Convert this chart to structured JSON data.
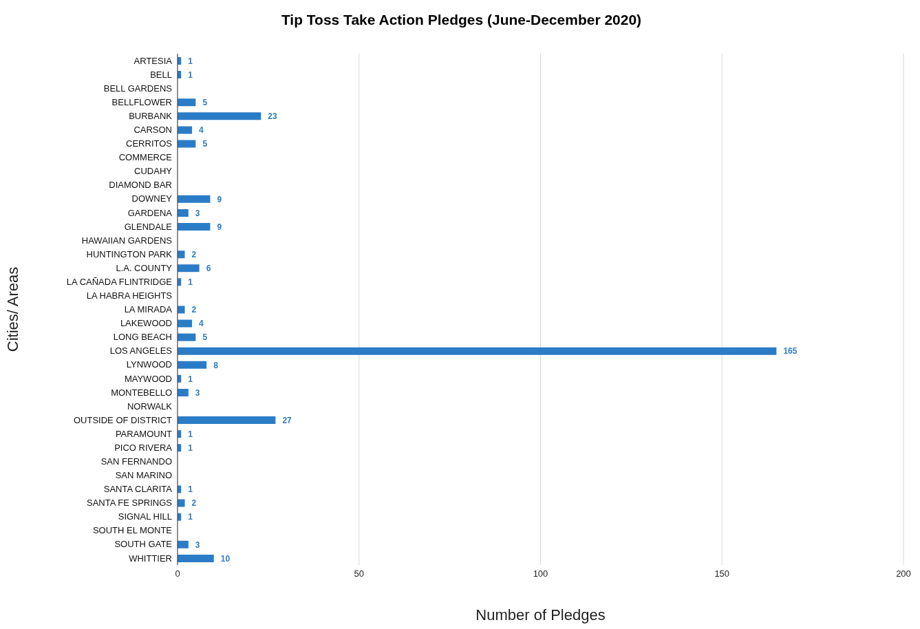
{
  "chart_data": {
    "type": "bar",
    "orientation": "horizontal",
    "title": "Tip Toss Take Action Pledges (June-December 2020)",
    "xlabel": "Number of Pledges",
    "ylabel": "Cities/ Areas",
    "categories": [
      "ARTESIA",
      "BELL",
      "BELL GARDENS",
      "BELLFLOWER",
      "BURBANK",
      "CARSON",
      "CERRITOS",
      "COMMERCE",
      "CUDAHY",
      "DIAMOND BAR",
      "DOWNEY",
      "GARDENA",
      "GLENDALE",
      "HAWAIIAN GARDENS",
      "HUNTINGTON PARK",
      "L.A. COUNTY",
      "LA CAÑADA FLINTRIDGE",
      "LA HABRA HEIGHTS",
      "LA MIRADA",
      "LAKEWOOD",
      "LONG BEACH",
      "LOS ANGELES",
      "LYNWOOD",
      "MAYWOOD",
      "MONTEBELLO",
      "NORWALK",
      "OUTSIDE OF DISTRICT",
      "PARAMOUNT",
      "PICO RIVERA",
      "SAN FERNANDO",
      "SAN MARINO",
      "SANTA CLARITA",
      "SANTA FE SPRINGS",
      "SIGNAL HILL",
      "SOUTH EL MONTE",
      "SOUTH GATE",
      "WHITTIER"
    ],
    "values": [
      1,
      1,
      null,
      5,
      23,
      4,
      5,
      null,
      null,
      null,
      9,
      3,
      9,
      null,
      2,
      6,
      1,
      null,
      2,
      4,
      5,
      165,
      8,
      1,
      3,
      null,
      27,
      1,
      1,
      null,
      null,
      1,
      2,
      1,
      null,
      3,
      10
    ],
    "color": "#2b7cc6",
    "xlim": [
      0,
      200
    ],
    "xticks": [
      0,
      50,
      100,
      150,
      200
    ],
    "grid": "x",
    "data_labels": true,
    "legend": false
  }
}
